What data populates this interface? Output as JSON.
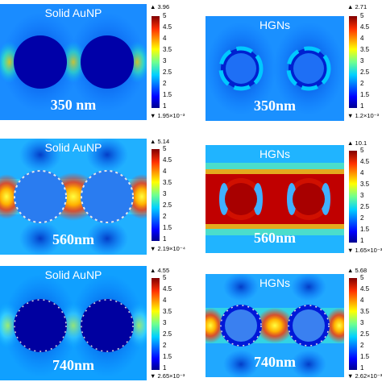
{
  "colors": {
    "jet_dark_blue": "#00008f",
    "jet_blue": "#0060ff",
    "jet_cyan": "#00d0ff",
    "jet_green": "#6fff8f",
    "jet_yellow": "#ffff00",
    "jet_orange": "#ff7f00",
    "jet_red": "#c00000"
  },
  "colorbar": {
    "ticks": [
      "5",
      "4.5",
      "4",
      "3.5",
      "3",
      "2.5",
      "2",
      "1.5",
      "1"
    ],
    "max_marker": "▲",
    "min_marker": "▼"
  },
  "panels": [
    {
      "title": "Solid AuNP",
      "label": "350 nm",
      "max": "3.96",
      "min": "1.95×10⁻³"
    },
    {
      "title": "HGNs",
      "label": "350nm",
      "max": "2.71",
      "min": "1.2×10⁻³"
    },
    {
      "title": "Solid AuNP",
      "label": "560nm",
      "max": "5.14",
      "min": "2.19×10⁻⁴"
    },
    {
      "title": "HGNs",
      "label": "560nm",
      "max": "10.1",
      "min": "1.65×10⁻³"
    },
    {
      "title": "Solid AuNP",
      "label": "740nm",
      "max": "4.55",
      "min": "2.65×10⁻³"
    },
    {
      "title": "HGNs",
      "label": "740nm",
      "max": "5.68",
      "min": "2.62×10⁻³"
    }
  ]
}
